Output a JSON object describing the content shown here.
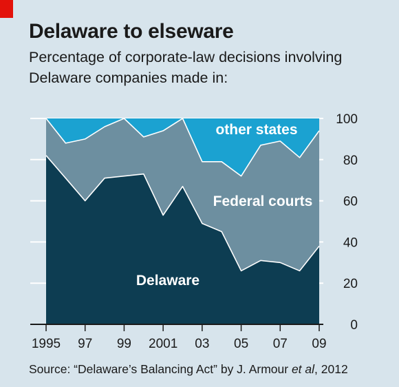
{
  "title": "Delaware to elseware",
  "subtitle_line1": "Percentage of corporate-law decisions involving",
  "subtitle_line2": "Delaware companies made in:",
  "source_prefix": "Source: “Delaware’s Balancing Act” by J. Armour ",
  "source_italic": "et al",
  "source_suffix": ", 2012",
  "colors": {
    "background": "#d7e4ec",
    "delaware": "#0d3d52",
    "federal": "#6d8fa0",
    "other_states": "#1ba2d1",
    "gridline": "#ffffff",
    "accent": "#e3120b"
  },
  "chart_data": {
    "type": "area",
    "stacked": true,
    "x": [
      1995,
      1996,
      1997,
      1998,
      1999,
      2000,
      2001,
      2002,
      2003,
      2004,
      2005,
      2006,
      2007,
      2008,
      2009
    ],
    "x_tick_labels": [
      "1995",
      "97",
      "99",
      "2001",
      "03",
      "05",
      "07",
      "09"
    ],
    "x_tick_values": [
      1995,
      1997,
      1999,
      2001,
      2003,
      2005,
      2007,
      2009
    ],
    "series": [
      {
        "name": "Delaware",
        "values": [
          82,
          71,
          60,
          71,
          72,
          73,
          53,
          67,
          49,
          45,
          26,
          31,
          30,
          26,
          38
        ]
      },
      {
        "name": "Federal courts",
        "values": [
          18,
          17,
          30,
          25,
          28,
          18,
          41,
          33,
          30,
          34,
          46,
          56,
          59,
          55,
          56
        ]
      },
      {
        "name": "other states",
        "values": [
          0,
          12,
          10,
          4,
          0,
          9,
          6,
          0,
          21,
          21,
          28,
          13,
          11,
          19,
          6
        ]
      }
    ],
    "ylim": [
      0,
      100
    ],
    "y_ticks": [
      0,
      20,
      40,
      60,
      80,
      100
    ],
    "y_axis_side": "right",
    "grid": true
  }
}
